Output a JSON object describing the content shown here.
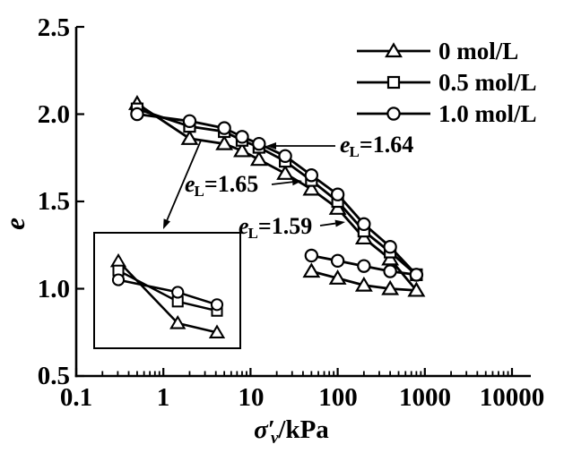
{
  "figure": {
    "background": "#ffffff",
    "line_color": "#000000"
  },
  "chart_data": {
    "type": "line",
    "title": "",
    "x_axis": {
      "label_symbol": "σ",
      "label_prime": "′",
      "label_subscript": "v",
      "label_unit": "/kPa",
      "scale": "log",
      "min": 0.1,
      "max": 10000,
      "tick_values": [
        0.1,
        1,
        10,
        100,
        1000,
        10000
      ],
      "tick_labels": [
        "0.1",
        "1",
        "10",
        "100",
        "1000",
        "10000"
      ],
      "minor_ticks": "log decades 2-9"
    },
    "y_axis": {
      "label": "e",
      "scale": "linear",
      "min": 0.5,
      "max": 2.5,
      "tick_values": [
        2.5,
        2.0,
        1.5,
        1.0,
        0.5
      ],
      "tick_labels": [
        "2.5",
        "2.0",
        "1.5",
        "1.0",
        "0.5"
      ]
    },
    "stress_kPa": [
      0.5,
      2,
      5,
      8,
      12.5,
      25,
      50,
      100,
      200,
      400,
      800
    ],
    "rebound_stress_kPa": [
      50,
      100,
      200,
      400,
      800
    ],
    "series": [
      {
        "name": "0 mol/L",
        "marker": "triangle",
        "void_ratio": [
          2.06,
          1.86,
          1.83,
          1.79,
          1.74,
          1.66,
          1.57,
          1.46,
          1.29,
          1.17,
          0.99
        ],
        "rebound_void_ratio": [
          1.1,
          1.06,
          1.02,
          1.0,
          0.99
        ]
      },
      {
        "name": "0.5 mol/L",
        "marker": "square",
        "void_ratio": [
          2.03,
          1.93,
          1.9,
          1.85,
          1.81,
          1.73,
          1.62,
          1.5,
          1.33,
          1.21,
          1.08
        ],
        "rebound_void_ratio": null
      },
      {
        "name": "1.0 mol/L",
        "marker": "circle",
        "void_ratio": [
          2.0,
          1.96,
          1.92,
          1.87,
          1.83,
          1.76,
          1.65,
          1.54,
          1.37,
          1.24,
          1.08
        ],
        "rebound_void_ratio": [
          1.19,
          1.16,
          1.13,
          1.1,
          1.08
        ]
      }
    ],
    "annotations": [
      {
        "e_symbol": "e",
        "subscript": "L",
        "value": "=1.64",
        "points_to_series": "0.5 mol/L"
      },
      {
        "e_symbol": "e",
        "subscript": "L",
        "value": "=1.65",
        "points_to_series": "0 mol/L"
      },
      {
        "e_symbol": "e",
        "subscript": "L",
        "value": "=1.59",
        "points_to_series": "1.0 mol/L"
      }
    ],
    "inset": {
      "description": "magnified view of the low-stress points",
      "stress_kPa": [
        0.5,
        2,
        5
      ]
    },
    "legend": {
      "position": "top-right",
      "entries": [
        "0 mol/L",
        "0.5 mol/L",
        "1.0 mol/L"
      ]
    }
  }
}
